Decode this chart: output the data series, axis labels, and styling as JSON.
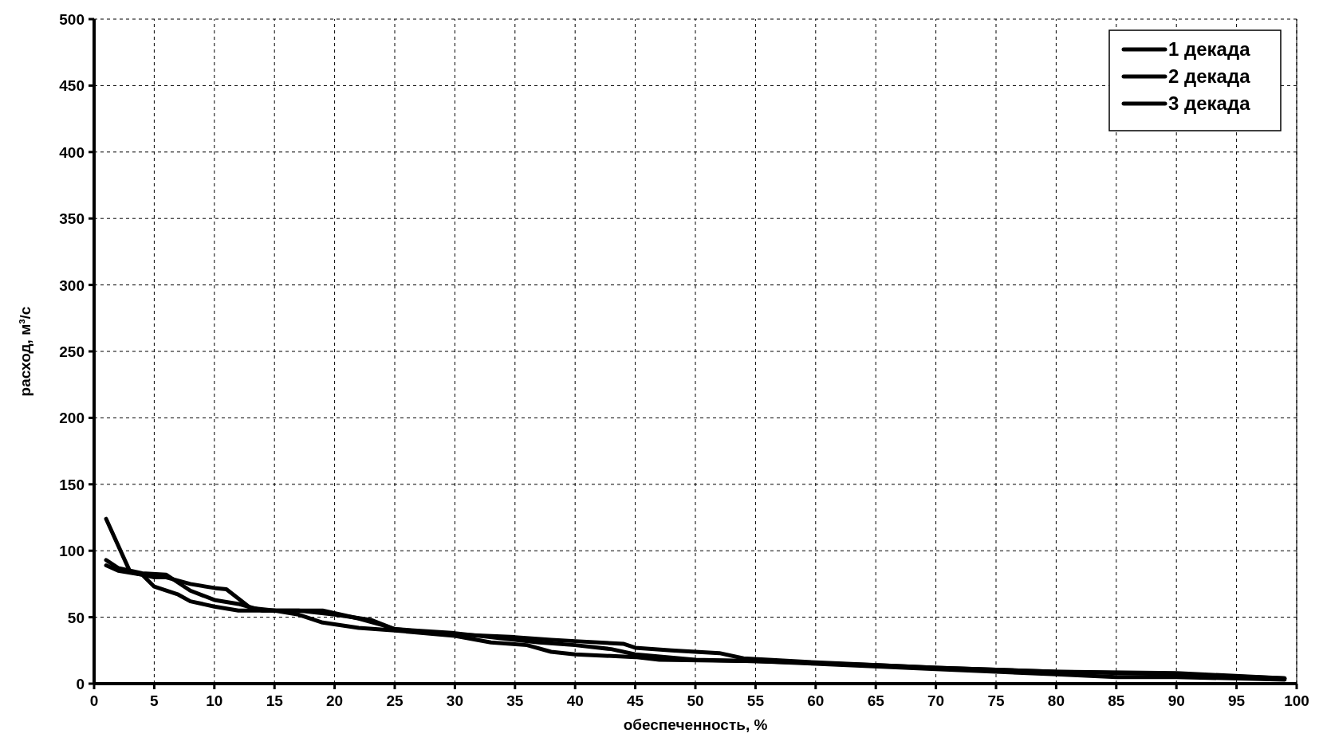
{
  "chart_data": {
    "type": "line",
    "xlabel": "обеспеченность, %",
    "ylabel": "расход, м³/с",
    "xlim": [
      0,
      100
    ],
    "ylim": [
      0,
      500
    ],
    "xticks": [
      0,
      5,
      10,
      15,
      20,
      25,
      30,
      35,
      40,
      45,
      50,
      55,
      60,
      65,
      70,
      75,
      80,
      85,
      90,
      95,
      100
    ],
    "yticks": [
      0,
      50,
      100,
      150,
      200,
      250,
      300,
      350,
      400,
      450,
      500
    ],
    "grid": true,
    "legend": "top right",
    "line_style": "solid",
    "marker": "none",
    "series": [
      {
        "name": "1 декада",
        "color": "#000000",
        "x": [
          1,
          3,
          5,
          6,
          8,
          10,
          11,
          13,
          15,
          17,
          19,
          22,
          24,
          25,
          30,
          35,
          37,
          40,
          43,
          45,
          50,
          55,
          60,
          70,
          80,
          85,
          90,
          99
        ],
        "values": [
          124,
          84,
          80,
          80,
          75,
          72,
          71,
          57,
          55,
          55,
          55,
          49,
          44,
          41,
          38,
          33,
          31,
          29,
          26,
          22,
          18,
          17,
          15,
          11,
          7,
          5,
          5,
          3
        ]
      },
      {
        "name": "2 декада",
        "color": "#000000",
        "x": [
          1,
          2,
          4,
          6,
          8,
          10,
          12,
          14,
          17,
          20,
          23,
          25,
          30,
          35,
          38,
          40,
          44,
          45,
          48,
          50,
          52,
          54,
          60,
          70,
          80,
          90,
          99
        ],
        "values": [
          93,
          87,
          83,
          82,
          70,
          63,
          60,
          55,
          55,
          52,
          48,
          41,
          37,
          35,
          33,
          32,
          30,
          27,
          25,
          24,
          23,
          19,
          16,
          12,
          9,
          7,
          4
        ]
      },
      {
        "name": "3 декада",
        "color": "#000000",
        "x": [
          1,
          2,
          4,
          5,
          7,
          8,
          10,
          12,
          15,
          17,
          19,
          22,
          25,
          30,
          33,
          36,
          38,
          40,
          45,
          47,
          55,
          65,
          70,
          80,
          90,
          99
        ],
        "values": [
          89,
          85,
          82,
          73,
          67,
          62,
          58,
          55,
          55,
          52,
          46,
          42,
          40,
          36,
          31,
          29,
          24,
          22,
          20,
          18,
          17,
          14,
          12,
          9,
          8,
          4
        ]
      }
    ]
  }
}
